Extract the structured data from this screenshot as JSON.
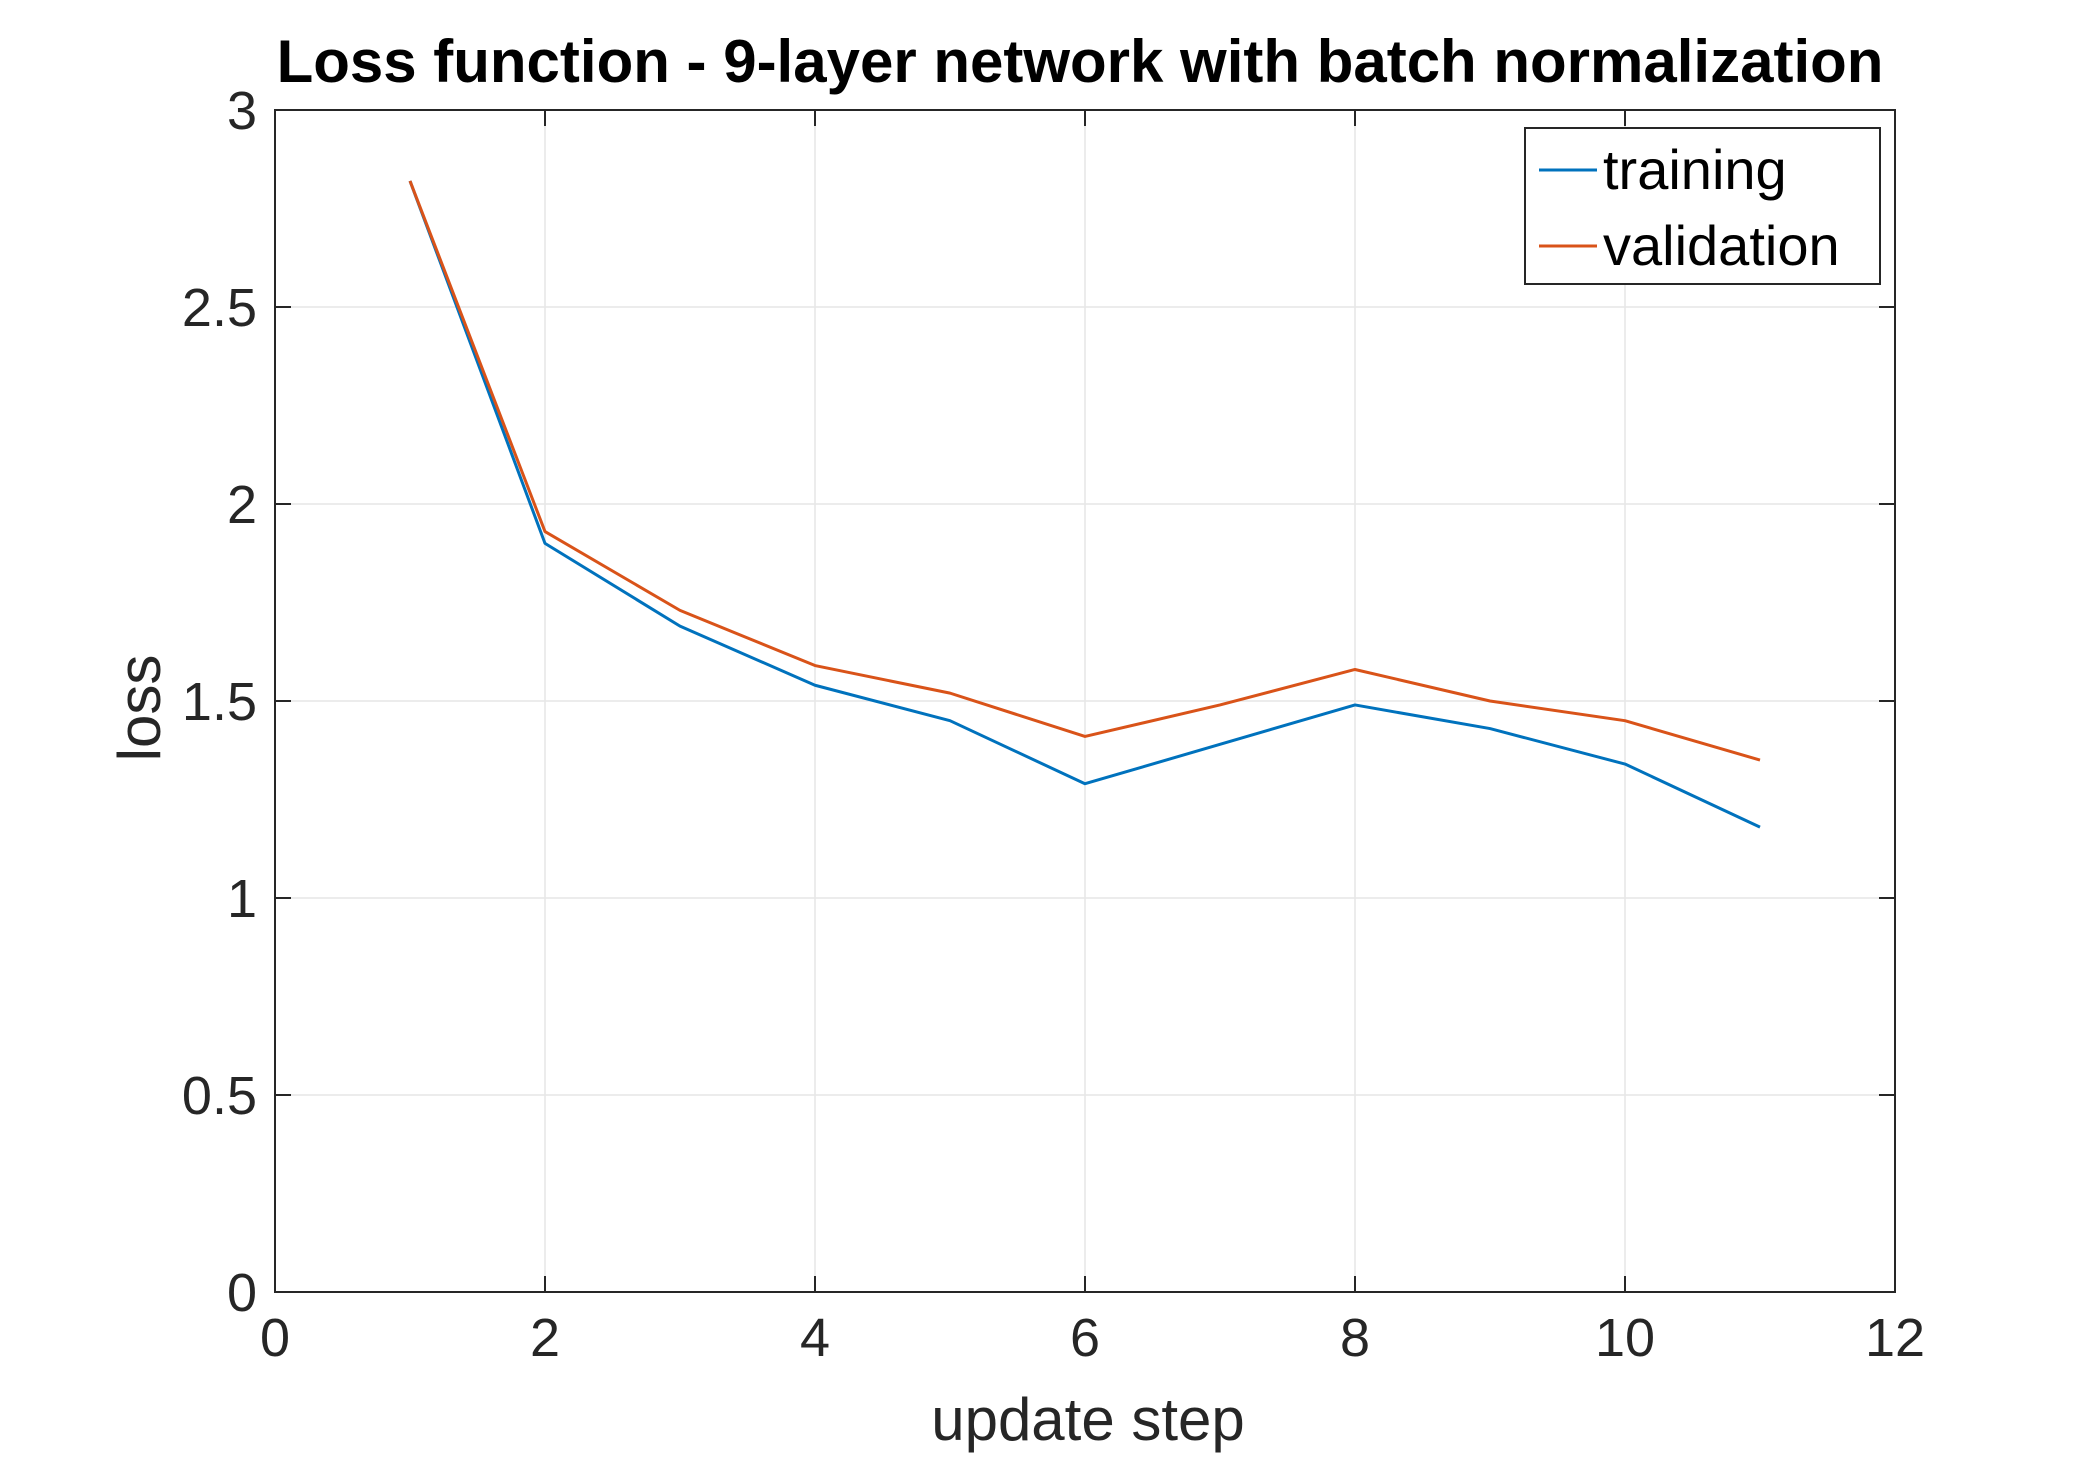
{
  "chart_data": {
    "type": "line",
    "title": "Loss function - 9-layer network with batch normalization",
    "xlabel": "update step",
    "ylabel": "loss",
    "xlim": [
      0,
      12
    ],
    "ylim": [
      0,
      3
    ],
    "xticks": [
      0,
      2,
      4,
      6,
      8,
      10,
      12
    ],
    "yticks": [
      0,
      0.5,
      1,
      1.5,
      2,
      2.5,
      3
    ],
    "xtick_labels": [
      "0",
      "2",
      "4",
      "6",
      "8",
      "10",
      "12"
    ],
    "ytick_labels": [
      "0",
      "0.5",
      "1",
      "1.5",
      "2",
      "2.5",
      "3"
    ],
    "grid": true,
    "legend_position": "top-right",
    "x": [
      1,
      2,
      3,
      4,
      5,
      6,
      7,
      8,
      9,
      10,
      11
    ],
    "series": [
      {
        "name": "training",
        "color": "#0072BD",
        "values": [
          2.82,
          1.9,
          1.69,
          1.54,
          1.45,
          1.29,
          1.39,
          1.49,
          1.43,
          1.34,
          1.18
        ]
      },
      {
        "name": "validation",
        "color": "#D95319",
        "values": [
          2.82,
          1.93,
          1.73,
          1.59,
          1.52,
          1.41,
          1.49,
          1.58,
          1.5,
          1.45,
          1.35
        ]
      }
    ]
  }
}
